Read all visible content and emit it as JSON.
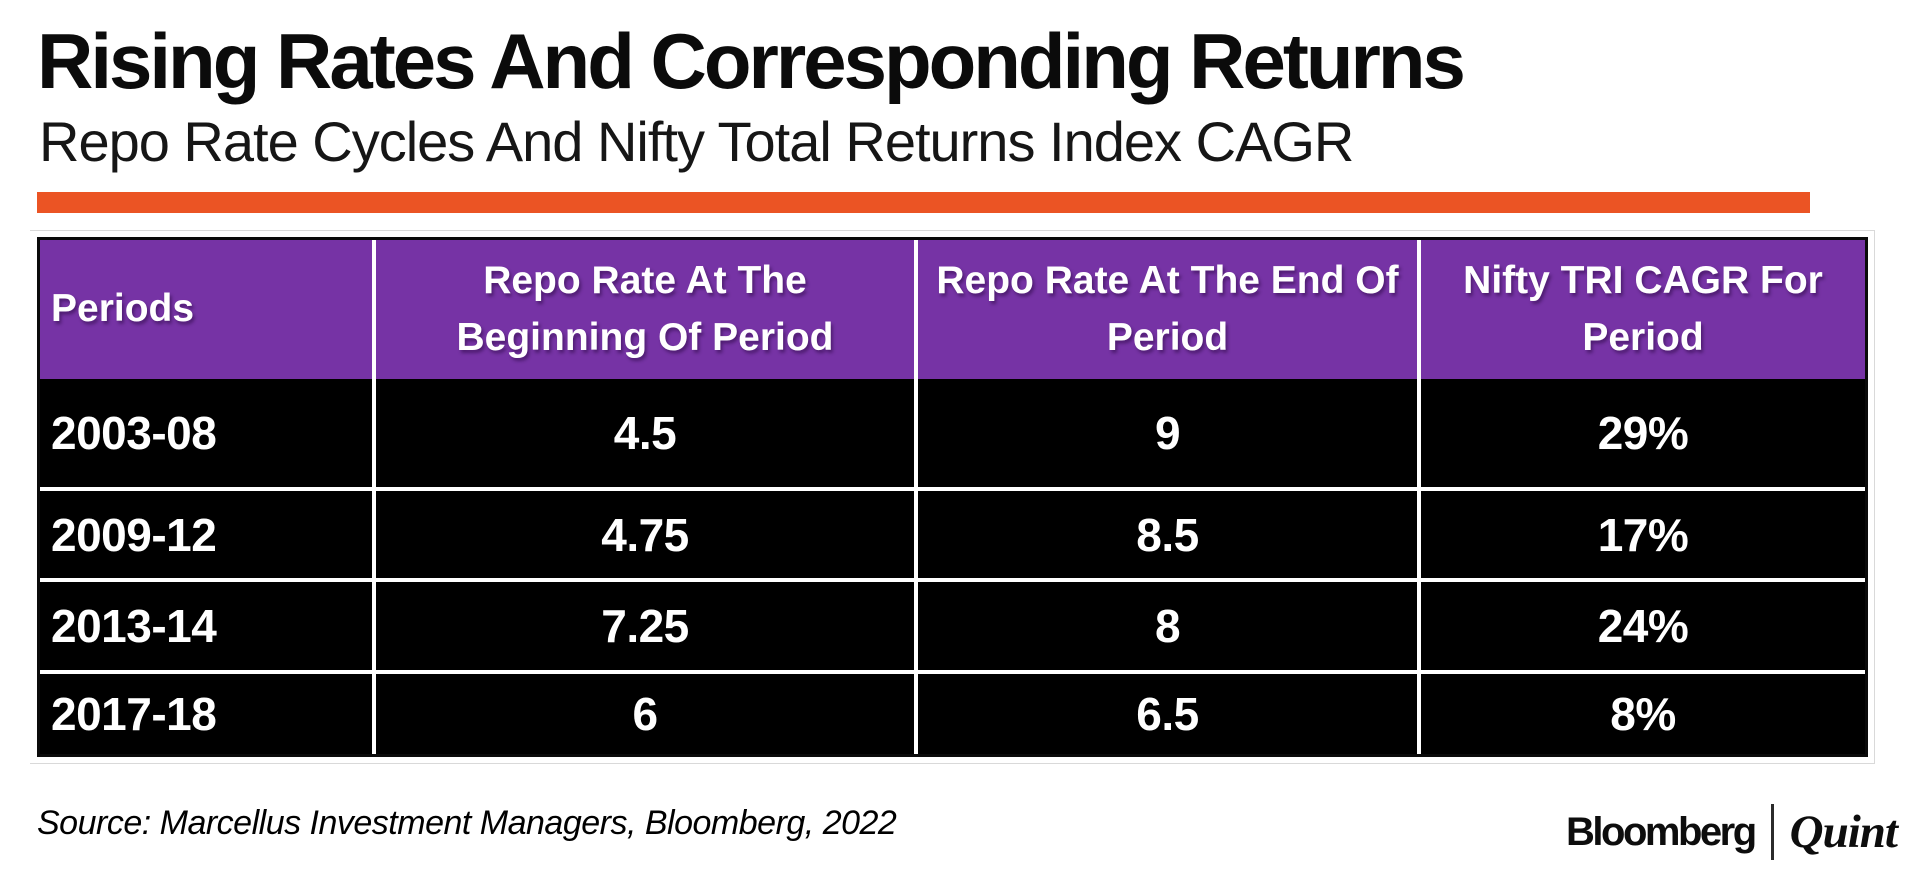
{
  "page": {
    "title": "Rising Rates And Corresponding Returns",
    "subtitle": "Repo Rate Cycles And Nifty Total Returns Index CAGR"
  },
  "colors": {
    "divider_orange": "#EB5424",
    "header_purple": "#7633A5",
    "row_black": "#000000",
    "table_text_white": "#FFFFFF"
  },
  "chart_data": {
    "type": "table",
    "title": "Rising Rates And Corresponding Returns",
    "subtitle": "Repo Rate Cycles And Nifty Total Returns Index CAGR",
    "columns": [
      "Periods",
      "Repo Rate At The Beginning Of Period",
      "Repo Rate At The End Of Period",
      "Nifty TRI CAGR For Period"
    ],
    "rows": [
      [
        "2003-08",
        "4.5",
        "9",
        "29%"
      ],
      [
        "2009-12",
        "4.75",
        "8.5",
        "17%"
      ],
      [
        "2013-14",
        "7.25",
        "8",
        "24%"
      ],
      [
        "2017-18",
        "6",
        "6.5",
        "8%"
      ]
    ],
    "numeric": {
      "periods": [
        "2003-08",
        "2009-12",
        "2013-14",
        "2017-18"
      ],
      "repo_rate_at_beginning": [
        4.5,
        4.75,
        7.25,
        6
      ],
      "repo_rate_at_end": [
        9,
        8.5,
        8,
        6.5
      ],
      "nifty_tri_cagr_percent": [
        29,
        17,
        24,
        8
      ]
    }
  },
  "footer": {
    "source": "Source: Marcellus Investment Managers, Bloomberg, 2022",
    "brand_left": "Bloomberg",
    "brand_right": "Quint"
  }
}
